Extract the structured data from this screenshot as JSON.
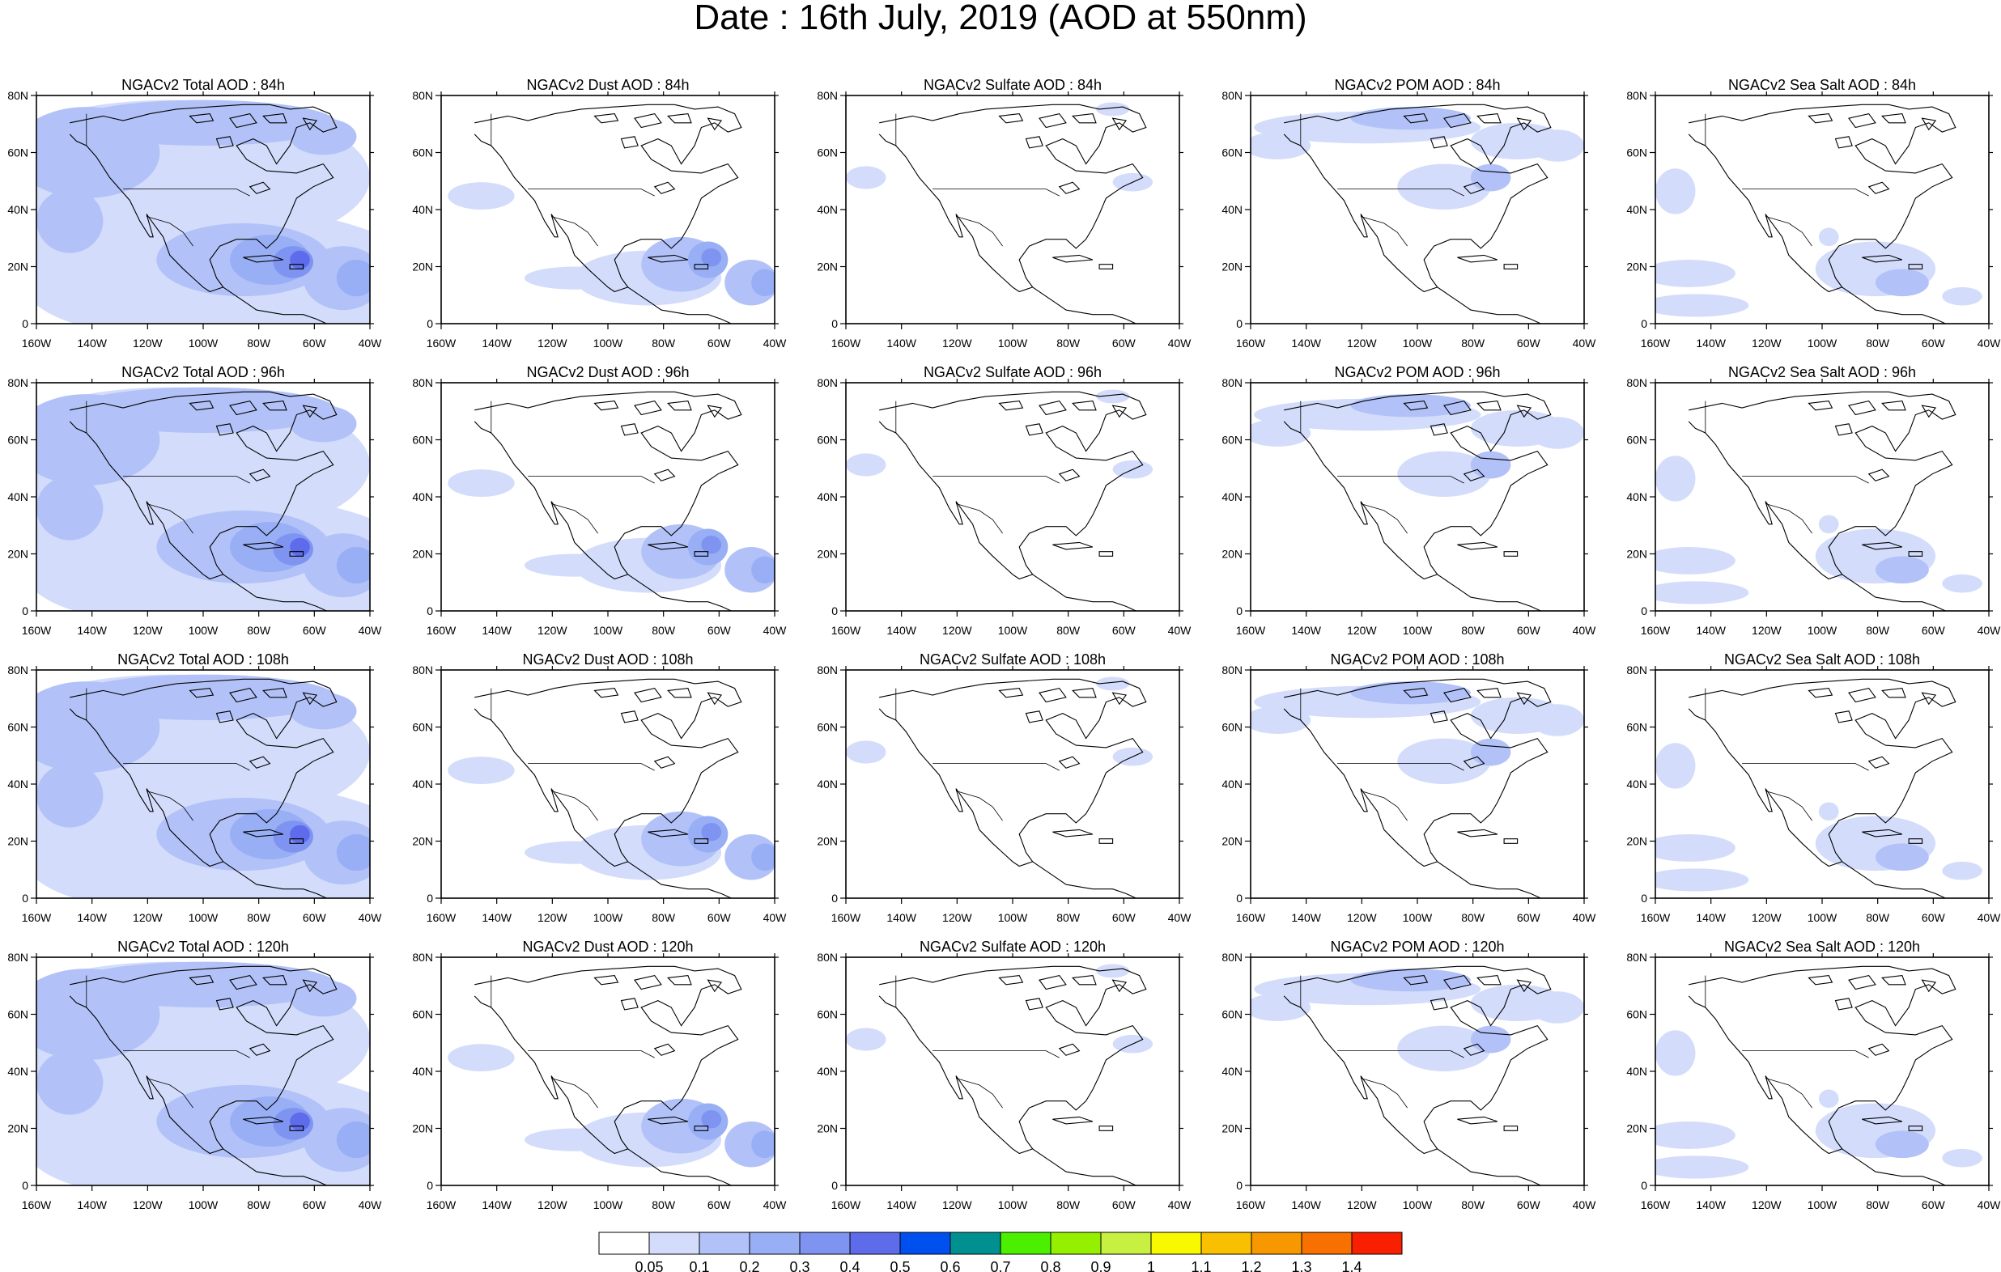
{
  "figure": {
    "title": "Date : 16th July, 2019 (AOD at 550nm)"
  },
  "axes": {
    "lon_labels": [
      "160W",
      "140W",
      "120W",
      "100W",
      "80W",
      "60W",
      "40W"
    ],
    "lat_labels": [
      "0",
      "20N",
      "40N",
      "60N",
      "80N"
    ],
    "lon_range": [
      -160,
      -40
    ],
    "lat_range": [
      0,
      80
    ]
  },
  "panels": [
    [
      {
        "title": "NGACv2 Total AOD : 84h",
        "species": "total"
      },
      {
        "title": "NGACv2 Dust AOD : 84h",
        "species": "dust"
      },
      {
        "title": "NGACv2 Sulfate AOD : 84h",
        "species": "sulfate"
      },
      {
        "title": "NGACv2 POM AOD : 84h",
        "species": "pom"
      },
      {
        "title": "NGACv2 Sea Salt AOD : 84h",
        "species": "seasalt"
      }
    ],
    [
      {
        "title": "NGACv2 Total AOD : 96h",
        "species": "total"
      },
      {
        "title": "NGACv2 Dust AOD : 96h",
        "species": "dust"
      },
      {
        "title": "NGACv2 Sulfate AOD : 96h",
        "species": "sulfate"
      },
      {
        "title": "NGACv2 POM AOD : 96h",
        "species": "pom"
      },
      {
        "title": "NGACv2 Sea Salt AOD : 96h",
        "species": "seasalt"
      }
    ],
    [
      {
        "title": "NGACv2 Total AOD : 108h",
        "species": "total"
      },
      {
        "title": "NGACv2 Dust AOD : 108h",
        "species": "dust"
      },
      {
        "title": "NGACv2 Sulfate AOD : 108h",
        "species": "sulfate"
      },
      {
        "title": "NGACv2 POM AOD : 108h",
        "species": "pom"
      },
      {
        "title": "NGACv2 Sea Salt AOD : 108h",
        "species": "seasalt"
      }
    ],
    [
      {
        "title": "NGACv2 Total AOD : 120h",
        "species": "total"
      },
      {
        "title": "NGACv2 Dust AOD : 120h",
        "species": "dust"
      },
      {
        "title": "NGACv2 Sulfate AOD : 120h",
        "species": "sulfate"
      },
      {
        "title": "NGACv2 POM AOD : 120h",
        "species": "pom"
      },
      {
        "title": "NGACv2 Sea Salt  AOD : 120h",
        "species": "seasalt"
      }
    ]
  ],
  "colorbar": {
    "labels": [
      "0.05",
      "0.1",
      "0.2",
      "0.3",
      "0.4",
      "0.5",
      "0.6",
      "0.7",
      "0.8",
      "0.9",
      "1",
      "1.1",
      "1.2",
      "1.3",
      "1.4"
    ],
    "colors": [
      "#ffffff",
      "#d3dcfb",
      "#b2c2f8",
      "#98aff5",
      "#7f94f1",
      "#5e6cec",
      "#0050f0",
      "#009090",
      "#4af000",
      "#94f000",
      "#c8f040",
      "#f8f800",
      "#f8c000",
      "#f89800",
      "#f87000",
      "#f82000"
    ]
  },
  "shading_levels": {
    "l1": "#d3dcfb",
    "l2": "#b2c2f8",
    "l3": "#98aff5",
    "l4": "#7f94f1",
    "l5": "#5e6cec"
  }
}
